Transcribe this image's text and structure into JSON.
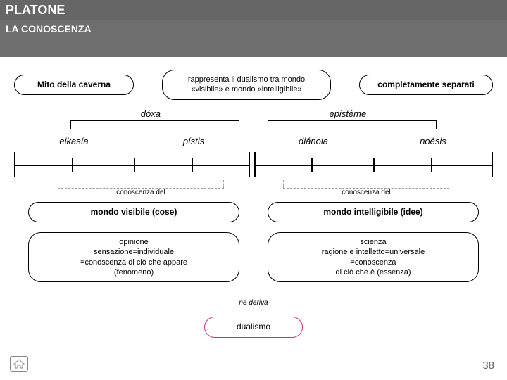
{
  "header": {
    "title": "PLATONE",
    "subtitle": "LA CONOSCENZA"
  },
  "row1": {
    "left": "Mito della caverna",
    "center": "rappresenta il dualismo tra mondo «visibile» e mondo «intelligibile»",
    "right": "completamente separati"
  },
  "row2": {
    "left": "dóxa",
    "right": "epistéme"
  },
  "row3": {
    "a": "eikasía",
    "b": "pístis",
    "c": "diánoia",
    "d": "noésis"
  },
  "brackets": {
    "left_label": "conoscenza del",
    "right_label": "conoscenza del"
  },
  "row5": {
    "left": "mondo visibile (cose)",
    "right": "mondo intelligibile (idee)"
  },
  "row6": {
    "left": "opinione\nsensazione=individuale\n=conoscenza di ciò che appare\n(fenomeno)",
    "right": "scienza\nragione e intelletto=universale\n=conoscenza\ndi ciò che è (essenza)"
  },
  "deriva": "ne deriva",
  "final": "dualismo",
  "page": "38",
  "colors": {
    "header_bg": "#666666",
    "header_sub_bg": "#6e6e6e",
    "accent": "#c92b8e",
    "text": "#000000"
  },
  "timeline": {
    "ticks_tall_pct": [
      0,
      100
    ],
    "ticks_short_pct": [
      12,
      25,
      37,
      62,
      75,
      87
    ],
    "center_gap_pct": 49
  }
}
